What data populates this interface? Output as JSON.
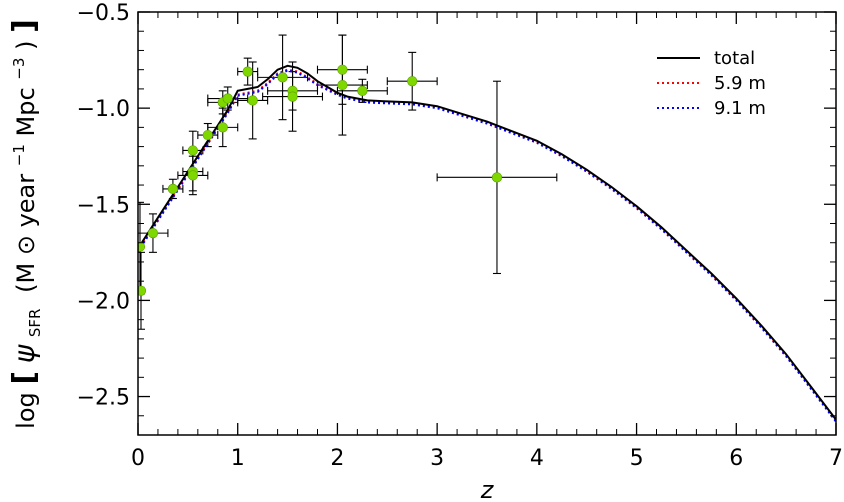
{
  "chart_data": {
    "type": "line",
    "xlabel": "z",
    "ylabel": {
      "prefix": "log",
      "psi": "ψ",
      "sub": "SFR",
      "unit_open": "(M",
      "sun": "⊙",
      "unit_mid": " year",
      "exp1": "−1",
      "unit_mid2": " Mpc",
      "exp2": "−3",
      "unit_close": ")"
    },
    "xlim": [
      0,
      7
    ],
    "ylim": [
      -2.7,
      -0.5
    ],
    "xticks": [
      0,
      1,
      2,
      3,
      4,
      5,
      6,
      7
    ],
    "xtick_labels": [
      "0",
      "1",
      "2",
      "3",
      "4",
      "5",
      "6",
      "7"
    ],
    "yticks": [
      -2.5,
      -2.0,
      -1.5,
      -1.0,
      -0.5
    ],
    "ytick_labels": [
      "−2.5",
      "−2.0",
      "−1.5",
      "−1.0",
      "−0.5"
    ],
    "legend_position": "top-right",
    "series": [
      {
        "name": "total",
        "color": "#000000",
        "style": "solid",
        "x": [
          0.0,
          0.1,
          0.2,
          0.3,
          0.4,
          0.5,
          0.6,
          0.7,
          0.8,
          0.9,
          1.0,
          1.1,
          1.2,
          1.3,
          1.4,
          1.5,
          1.6,
          1.7,
          1.8,
          1.9,
          2.0,
          2.1,
          2.2,
          2.3,
          2.5,
          2.75,
          3.0,
          3.25,
          3.5,
          3.75,
          4.0,
          4.25,
          4.5,
          4.75,
          5.0,
          5.25,
          5.5,
          5.75,
          6.0,
          6.25,
          6.5,
          6.75,
          7.0
        ],
        "y": [
          -1.73,
          -1.65,
          -1.57,
          -1.49,
          -1.41,
          -1.33,
          -1.25,
          -1.17,
          -1.09,
          -1.01,
          -0.91,
          -0.9,
          -0.89,
          -0.85,
          -0.8,
          -0.78,
          -0.79,
          -0.82,
          -0.86,
          -0.89,
          -0.92,
          -0.94,
          -0.95,
          -0.96,
          -0.965,
          -0.97,
          -0.99,
          -1.03,
          -1.07,
          -1.12,
          -1.17,
          -1.24,
          -1.32,
          -1.41,
          -1.51,
          -1.62,
          -1.74,
          -1.86,
          -1.99,
          -2.13,
          -2.28,
          -2.45,
          -2.62
        ]
      },
      {
        "name": "5.9 m",
        "color": "#ff0000",
        "style": "dotted",
        "x": [
          0.0,
          0.1,
          0.2,
          0.3,
          0.4,
          0.5,
          0.6,
          0.7,
          0.8,
          0.9,
          1.0,
          1.1,
          1.2,
          1.3,
          1.4,
          1.5,
          1.6,
          1.7,
          1.8,
          1.9,
          2.0,
          2.1,
          2.2,
          2.3,
          2.5,
          2.75,
          3.0,
          3.25,
          3.5,
          3.75,
          4.0,
          4.25,
          4.5,
          4.75,
          5.0,
          5.25,
          5.5,
          5.75,
          6.0,
          6.25,
          6.5,
          6.75,
          7.0
        ],
        "y": [
          -1.74,
          -1.66,
          -1.58,
          -1.5,
          -1.42,
          -1.34,
          -1.26,
          -1.18,
          -1.1,
          -1.02,
          -0.93,
          -0.92,
          -0.91,
          -0.87,
          -0.82,
          -0.8,
          -0.81,
          -0.84,
          -0.875,
          -0.9,
          -0.925,
          -0.945,
          -0.955,
          -0.965,
          -0.97,
          -0.975,
          -0.995,
          -1.035,
          -1.075,
          -1.125,
          -1.175,
          -1.245,
          -1.325,
          -1.415,
          -1.515,
          -1.625,
          -1.745,
          -1.865,
          -1.995,
          -2.135,
          -2.285,
          -2.455,
          -2.625
        ]
      },
      {
        "name": "9.1 m",
        "color": "#0000ff",
        "style": "dotted",
        "x": [
          0.0,
          0.1,
          0.2,
          0.3,
          0.4,
          0.5,
          0.6,
          0.7,
          0.8,
          0.9,
          1.0,
          1.1,
          1.2,
          1.3,
          1.4,
          1.5,
          1.6,
          1.7,
          1.8,
          1.9,
          2.0,
          2.1,
          2.2,
          2.3,
          2.5,
          2.75,
          3.0,
          3.25,
          3.5,
          3.75,
          4.0,
          4.25,
          4.5,
          4.75,
          5.0,
          5.25,
          5.5,
          5.75,
          6.0,
          6.25,
          6.5,
          6.75,
          7.0
        ],
        "y": [
          -1.745,
          -1.665,
          -1.585,
          -1.505,
          -1.425,
          -1.345,
          -1.265,
          -1.185,
          -1.105,
          -1.025,
          -0.935,
          -0.925,
          -0.915,
          -0.875,
          -0.825,
          -0.805,
          -0.815,
          -0.845,
          -0.88,
          -0.905,
          -0.93,
          -0.95,
          -0.96,
          -0.97,
          -0.975,
          -0.98,
          -1.0,
          -1.04,
          -1.08,
          -1.13,
          -1.18,
          -1.25,
          -1.33,
          -1.42,
          -1.52,
          -1.63,
          -1.75,
          -1.87,
          -2.0,
          -2.14,
          -2.29,
          -2.46,
          -2.63
        ]
      }
    ],
    "observations": {
      "marker_color": "#7fd700",
      "points": [
        {
          "x": 0.02,
          "y": -1.72,
          "xerr": 0.02,
          "yerr": 0.23
        },
        {
          "x": 0.03,
          "y": -1.95,
          "xerr": 0.03,
          "yerr": 0.2
        },
        {
          "x": 0.15,
          "y": -1.65,
          "xerr": 0.15,
          "yerr": 0.1
        },
        {
          "x": 0.35,
          "y": -1.42,
          "xerr": 0.1,
          "yerr": 0.05
        },
        {
          "x": 0.55,
          "y": -1.22,
          "xerr": 0.1,
          "yerr": 0.1
        },
        {
          "x": 0.55,
          "y": -1.33,
          "xerr": 0.1,
          "yerr": 0.1
        },
        {
          "x": 0.55,
          "y": -1.35,
          "xerr": 0.15,
          "yerr": 0.1
        },
        {
          "x": 0.7,
          "y": -1.14,
          "xerr": 0.1,
          "yerr": 0.06
        },
        {
          "x": 0.85,
          "y": -0.97,
          "xerr": 0.15,
          "yerr": 0.06
        },
        {
          "x": 0.85,
          "y": -1.1,
          "xerr": 0.15,
          "yerr": 0.1
        },
        {
          "x": 0.9,
          "y": -0.95,
          "xerr": 0.2,
          "yerr": 0.06
        },
        {
          "x": 1.1,
          "y": -0.81,
          "xerr": 0.1,
          "yerr": 0.07
        },
        {
          "x": 1.15,
          "y": -0.96,
          "xerr": 0.15,
          "yerr": 0.2
        },
        {
          "x": 1.45,
          "y": -0.84,
          "xerr": 0.25,
          "yerr": 0.22
        },
        {
          "x": 1.55,
          "y": -0.91,
          "xerr": 0.25,
          "yerr": 0.1
        },
        {
          "x": 1.55,
          "y": -0.94,
          "xerr": 0.3,
          "yerr": 0.18
        },
        {
          "x": 2.05,
          "y": -0.8,
          "xerr": 0.25,
          "yerr": 0.18
        },
        {
          "x": 2.05,
          "y": -0.88,
          "xerr": 0.25,
          "yerr": 0.26
        },
        {
          "x": 2.25,
          "y": -0.91,
          "xerr": 0.25,
          "yerr": 0.06
        },
        {
          "x": 2.75,
          "y": -0.86,
          "xerr": 0.25,
          "yerr": 0.15
        },
        {
          "x": 3.6,
          "y": -1.36,
          "xerr": 0.6,
          "yerr": 0.5
        }
      ]
    }
  }
}
